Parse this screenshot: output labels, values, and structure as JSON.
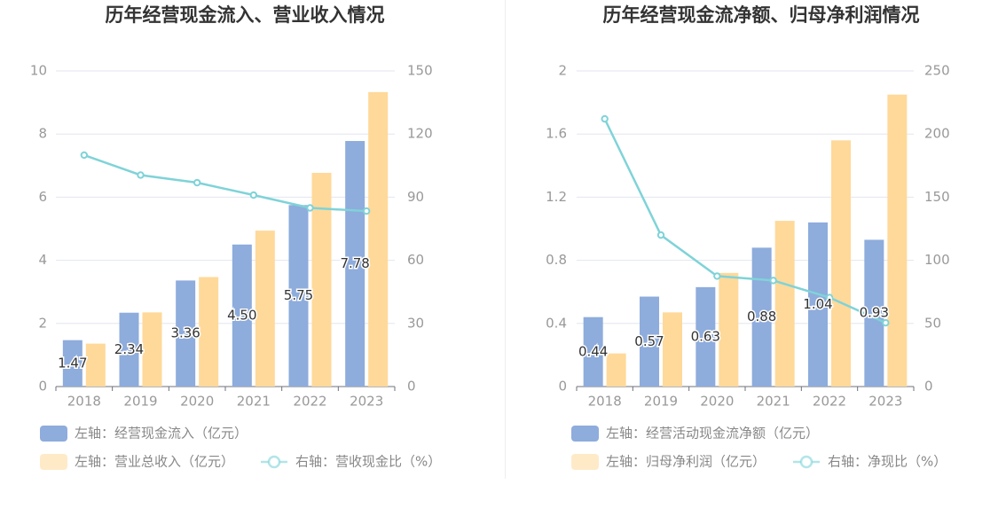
{
  "colors": {
    "bar_left": "#8eacdc",
    "bar_right": "#ffd99a",
    "line": "#7fd3d8",
    "grid": "#e3e6f0",
    "title": "#333333",
    "tick": "#999999",
    "label": "#333333",
    "legend_text": "#888888"
  },
  "chart_data": [
    {
      "type": "bar",
      "title": "历年经营现金流入、营业收入情况",
      "categories": [
        "2018",
        "2019",
        "2020",
        "2021",
        "2022",
        "2023"
      ],
      "ylim_left": [
        0,
        10
      ],
      "yticks_left": [
        "0",
        "2",
        "4",
        "6",
        "8",
        "10"
      ],
      "ylim_right": [
        0,
        150
      ],
      "yticks_right": [
        "0",
        "30",
        "60",
        "90",
        "120",
        "150"
      ],
      "grid": true,
      "legend_position": "bottom-left",
      "series": [
        {
          "name": "左轴：经营现金流入（亿元）",
          "kind": "bar",
          "axis": "left",
          "values": [
            1.47,
            2.34,
            3.36,
            4.5,
            5.75,
            7.78
          ],
          "labels": [
            "1.47",
            "2.34",
            "3.36",
            "4.50",
            "5.75",
            "7.78"
          ]
        },
        {
          "name": "左轴：营业总收入（亿元）",
          "kind": "bar",
          "axis": "left",
          "values": [
            1.36,
            2.35,
            3.47,
            4.94,
            6.77,
            9.33
          ]
        },
        {
          "name": "右轴：营收现金比（%）",
          "kind": "line",
          "axis": "right",
          "values": [
            110.0,
            100.5,
            96.9,
            91.0,
            84.9,
            83.4
          ]
        }
      ]
    },
    {
      "type": "bar",
      "title": "历年经营现金流净额、归母净利润情况",
      "categories": [
        "2018",
        "2019",
        "2020",
        "2021",
        "2022",
        "2023"
      ],
      "ylim_left": [
        0,
        2
      ],
      "yticks_left": [
        "0",
        "0.4",
        "0.8",
        "1.2",
        "1.6",
        "2"
      ],
      "ylim_right": [
        0,
        250
      ],
      "yticks_right": [
        "0",
        "50",
        "100",
        "150",
        "200",
        "250"
      ],
      "grid": true,
      "legend_position": "bottom-left",
      "series": [
        {
          "name": "左轴：经营活动现金流净额（亿元）",
          "kind": "bar",
          "axis": "left",
          "values": [
            0.44,
            0.57,
            0.63,
            0.88,
            1.04,
            0.93
          ],
          "labels": [
            "0.44",
            "0.57",
            "0.63",
            "0.88",
            "1.04",
            "0.93"
          ]
        },
        {
          "name": "左轴：归母净利润（亿元）",
          "kind": "bar",
          "axis": "left",
          "values": [
            0.21,
            0.47,
            0.72,
            1.05,
            1.56,
            1.85
          ]
        },
        {
          "name": "右轴：净现比（%）",
          "kind": "line",
          "axis": "right",
          "values": [
            212.0,
            120.0,
            87.5,
            84.0,
            70.5,
            50.5
          ]
        }
      ]
    }
  ]
}
